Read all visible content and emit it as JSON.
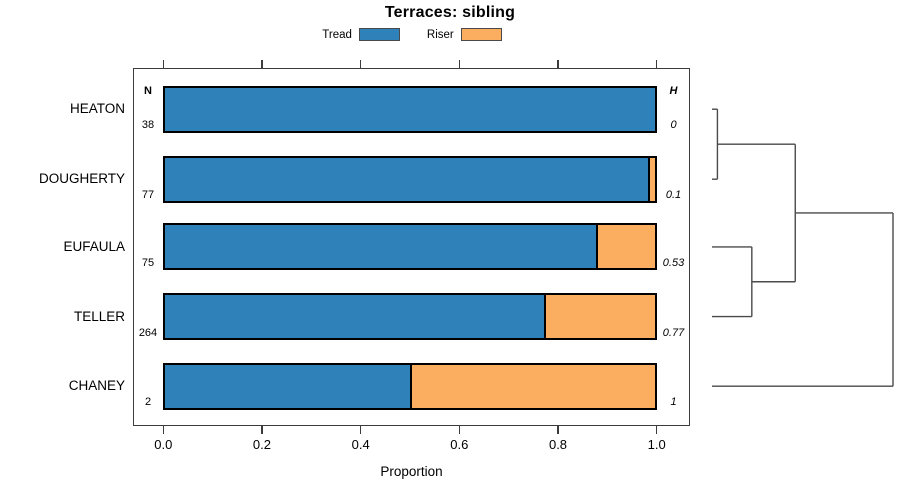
{
  "chart_data": {
    "type": "bar",
    "variant": "horizontal_stacked_proportion_with_dendrogram",
    "title": "Terraces: sibling",
    "xlabel": "Proportion",
    "xlim": [
      0,
      1
    ],
    "grid": false,
    "legend_position": "top-center",
    "xtick_values": [
      0,
      0.2,
      0.4,
      0.6,
      0.8,
      1.0
    ],
    "xtick_labels": [
      "0.0",
      "0.2",
      "0.4",
      "0.6",
      "0.8",
      "1.0"
    ],
    "categories": [
      "HEATON",
      "DOUGHERTY",
      "EUFAULA",
      "TELLER",
      "CHANEY"
    ],
    "series": [
      {
        "name": "Tread",
        "color": "#2E81B9",
        "values": [
          1.0,
          0.987,
          0.88,
          0.773,
          0.5
        ]
      },
      {
        "name": "Riser",
        "color": "#FBAD60",
        "values": [
          0.0,
          0.013,
          0.12,
          0.227,
          0.5
        ]
      }
    ],
    "counts": {
      "label": "N",
      "values": [
        "38",
        "77",
        "75",
        "264",
        "2"
      ]
    },
    "heterogeneity": {
      "label": "H",
      "values": [
        "0",
        "0.1",
        "0.53",
        "0.77",
        "1"
      ]
    },
    "dendrogram": {
      "orientation": "right",
      "merges": [
        {
          "left": "HEATON",
          "right": "DOUGHERTY",
          "height": 0.03
        },
        {
          "left": "EUFAULA",
          "right": "TELLER",
          "height": 0.22
        },
        {
          "left": "#0",
          "right": "#1",
          "height": 0.46
        },
        {
          "left": "#2",
          "right": "CHANEY",
          "height": 1.0
        }
      ]
    },
    "colors": {
      "bar_border": "#000000",
      "axis": "#3c3c3c",
      "dendrogram_line": "#4a4a4a",
      "background": "#ffffff"
    }
  }
}
